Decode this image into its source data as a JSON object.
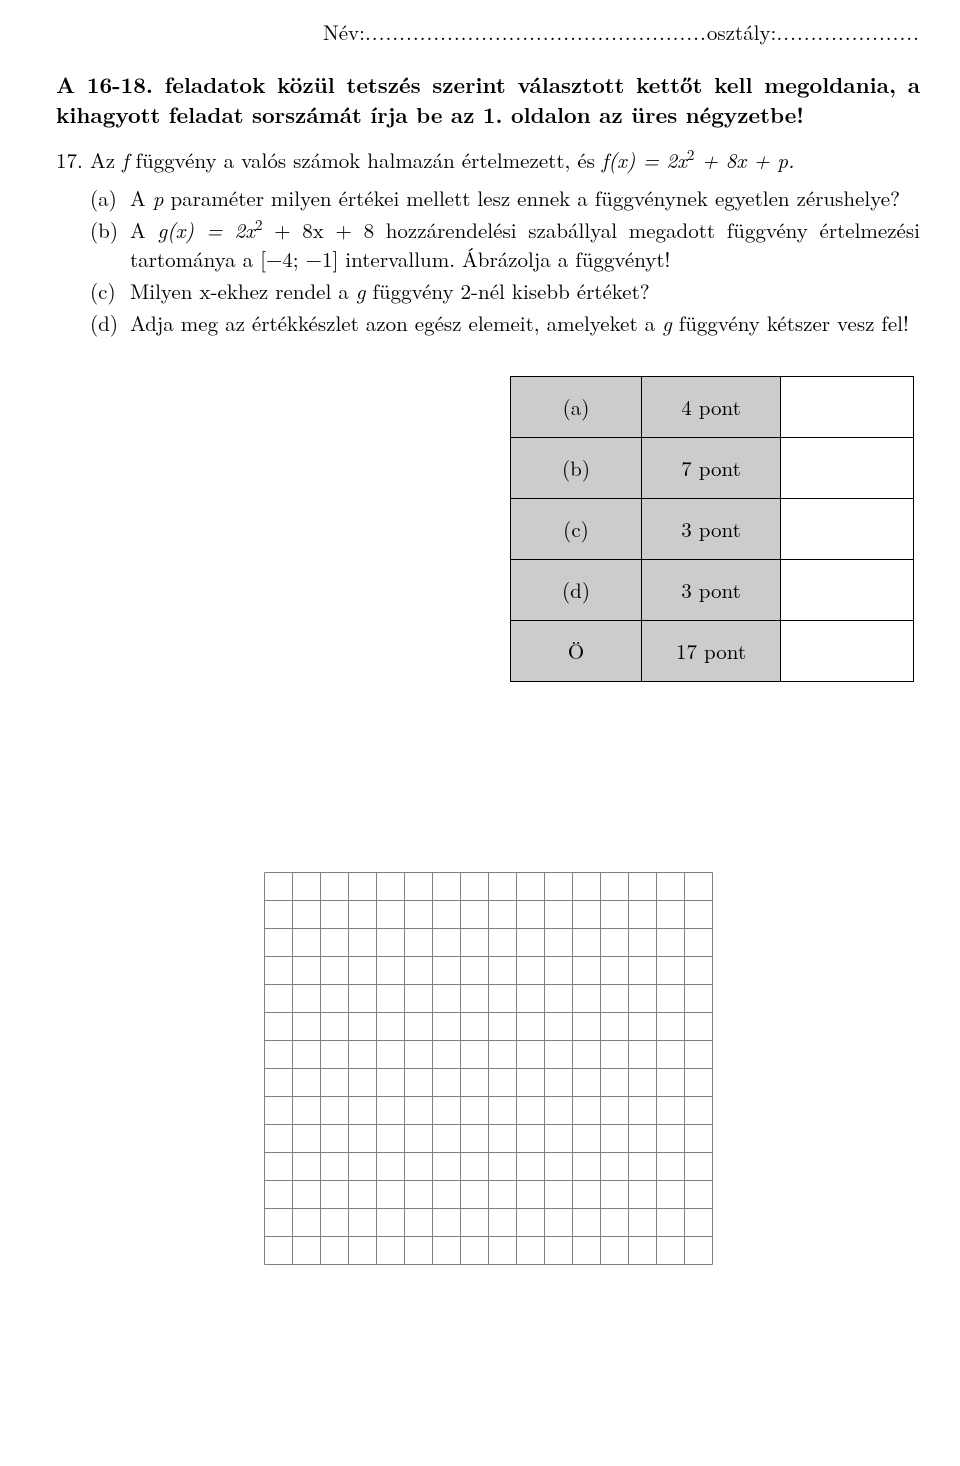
{
  "header": {
    "name_label": "Név:",
    "name_dots": "..................................................",
    "class_label": "osztály:",
    "class_dots": "....................."
  },
  "instruction": "A 16-18. feladatok közül tetszés szerint választott kettőt kell megoldania, a kihagyott feladat sorszámát írja be az 1. oldalon az üres négyzetbe!",
  "problem": {
    "number": "17.",
    "intro_pre": "Az ",
    "intro_f": "f",
    "intro_mid": " függvény a valós számok halmazán értelmezett, és ",
    "intro_fx": "f(x) = 2x",
    "intro_exp": "2",
    "intro_tail": " + 8x + p.",
    "items": {
      "a": {
        "label": "(a)",
        "pre": "A ",
        "p": "p",
        "text": " paraméter milyen értékei mellett lesz ennek a függvénynek egyetlen zérus­helye?"
      },
      "b": {
        "label": "(b)",
        "pre": "A ",
        "gx": "g(x) = 2x",
        "exp": "2",
        "mid": " + 8x + 8 hozzárendelési szabállyal megadott függvény értelmezési tartománya a [−4; −1] intervallum. Ábrázolja a függvényt!"
      },
      "c": {
        "label": "(c)",
        "pre": "Milyen x-ekhez rendel a ",
        "g": "g",
        "text": " függvény 2-nél kisebb értéket?"
      },
      "d": {
        "label": "(d)",
        "pre": "Adja meg az értékkészlet azon egész elemeit, amelyeket a ",
        "g": "g",
        "text": " függvény kétszer vesz fel!"
      }
    }
  },
  "score_table": {
    "rows": [
      {
        "label": "(a)",
        "points": "4 pont"
      },
      {
        "label": "(b)",
        "points": "7 pont"
      },
      {
        "label": "(c)",
        "points": "3 pont"
      },
      {
        "label": "(d)",
        "points": "3 pont"
      },
      {
        "label": "Ö",
        "points": "17 pont"
      }
    ],
    "cell_bg": "#cccccc",
    "blank_bg": "#ffffff",
    "border_color": "#000000"
  },
  "grid": {
    "cols": 16,
    "rows": 14,
    "cell": 28,
    "line_color": "#808080",
    "line_width": 1
  }
}
